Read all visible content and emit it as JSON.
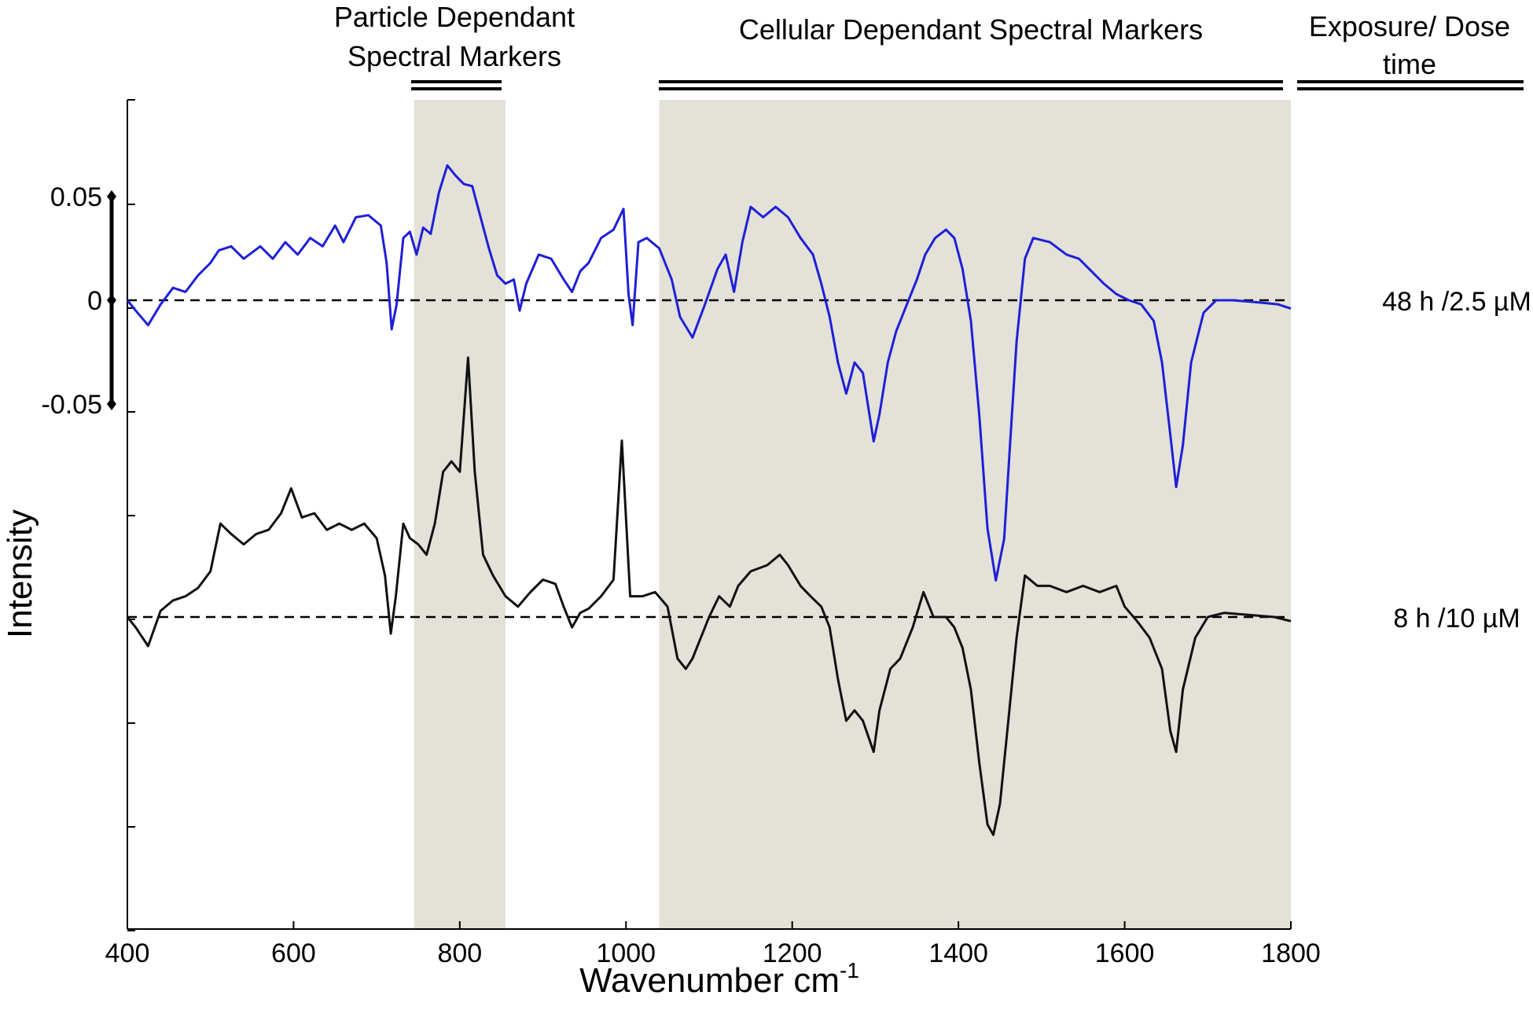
{
  "chart_data": {
    "type": "line",
    "xlabel": "Wavenumber cm-1",
    "xlabel_main": "Wavenumber cm",
    "xlabel_sup": "-1",
    "ylabel": "Intensity",
    "xlim": [
      400,
      1800
    ],
    "x_ticks": [
      "400",
      "600",
      "800",
      "1000",
      "1200",
      "1400",
      "1600",
      "1800"
    ],
    "scale_bar": {
      "labels": [
        "0.05",
        "0",
        "-0.05"
      ],
      "values": [
        0.05,
        0,
        -0.05
      ]
    },
    "regions": [
      {
        "label_lines": [
          "Particle Dependant",
          "Spectral Markers"
        ],
        "x_range": [
          745,
          855
        ]
      },
      {
        "label_lines": [
          "Cellular Dependant Spectral Markers"
        ],
        "x_range": [
          1040,
          1800
        ]
      }
    ],
    "exposure_header_lines": [
      "Exposure/ Dose",
      "time"
    ],
    "region_fill": "#e3e1d8",
    "series": [
      {
        "name": "48 h /2.5 µM",
        "color": "#1f1fd6",
        "baseline": 0,
        "points": [
          [
            400,
            0.0
          ],
          [
            410,
            -0.005
          ],
          [
            425,
            -0.012
          ],
          [
            440,
            -0.002
          ],
          [
            455,
            0.006
          ],
          [
            470,
            0.004
          ],
          [
            485,
            0.012
          ],
          [
            500,
            0.018
          ],
          [
            510,
            0.024
          ],
          [
            525,
            0.026
          ],
          [
            540,
            0.02
          ],
          [
            560,
            0.026
          ],
          [
            575,
            0.02
          ],
          [
            590,
            0.028
          ],
          [
            605,
            0.022
          ],
          [
            620,
            0.03
          ],
          [
            635,
            0.026
          ],
          [
            650,
            0.036
          ],
          [
            660,
            0.028
          ],
          [
            675,
            0.04
          ],
          [
            690,
            0.041
          ],
          [
            705,
            0.036
          ],
          [
            712,
            0.018
          ],
          [
            718,
            -0.014
          ],
          [
            724,
            -0.002
          ],
          [
            732,
            0.03
          ],
          [
            740,
            0.033
          ],
          [
            748,
            0.022
          ],
          [
            756,
            0.035
          ],
          [
            765,
            0.032
          ],
          [
            775,
            0.052
          ],
          [
            785,
            0.065
          ],
          [
            795,
            0.06
          ],
          [
            805,
            0.056
          ],
          [
            815,
            0.055
          ],
          [
            825,
            0.04
          ],
          [
            835,
            0.025
          ],
          [
            845,
            0.012
          ],
          [
            855,
            0.008
          ],
          [
            865,
            0.01
          ],
          [
            872,
            -0.005
          ],
          [
            880,
            0.008
          ],
          [
            895,
            0.022
          ],
          [
            910,
            0.02
          ],
          [
            925,
            0.01
          ],
          [
            935,
            0.004
          ],
          [
            945,
            0.014
          ],
          [
            955,
            0.018
          ],
          [
            970,
            0.03
          ],
          [
            985,
            0.034
          ],
          [
            997,
            0.044
          ],
          [
            1003,
            0.003
          ],
          [
            1008,
            -0.012
          ],
          [
            1015,
            0.028
          ],
          [
            1025,
            0.03
          ],
          [
            1040,
            0.025
          ],
          [
            1055,
            0.01
          ],
          [
            1065,
            -0.008
          ],
          [
            1080,
            -0.018
          ],
          [
            1095,
            -0.002
          ],
          [
            1110,
            0.015
          ],
          [
            1120,
            0.022
          ],
          [
            1130,
            0.004
          ],
          [
            1140,
            0.028
          ],
          [
            1150,
            0.045
          ],
          [
            1165,
            0.04
          ],
          [
            1180,
            0.045
          ],
          [
            1195,
            0.04
          ],
          [
            1210,
            0.03
          ],
          [
            1225,
            0.022
          ],
          [
            1235,
            0.008
          ],
          [
            1245,
            -0.008
          ],
          [
            1255,
            -0.03
          ],
          [
            1265,
            -0.045
          ],
          [
            1275,
            -0.03
          ],
          [
            1285,
            -0.035
          ],
          [
            1298,
            -0.068
          ],
          [
            1305,
            -0.055
          ],
          [
            1315,
            -0.03
          ],
          [
            1325,
            -0.015
          ],
          [
            1335,
            -0.005
          ],
          [
            1350,
            0.01
          ],
          [
            1360,
            0.022
          ],
          [
            1372,
            0.03
          ],
          [
            1385,
            0.034
          ],
          [
            1395,
            0.03
          ],
          [
            1405,
            0.015
          ],
          [
            1415,
            -0.01
          ],
          [
            1425,
            -0.055
          ],
          [
            1435,
            -0.11
          ],
          [
            1445,
            -0.135
          ],
          [
            1455,
            -0.115
          ],
          [
            1462,
            -0.07
          ],
          [
            1470,
            -0.02
          ],
          [
            1480,
            0.02
          ],
          [
            1490,
            0.03
          ],
          [
            1510,
            0.028
          ],
          [
            1530,
            0.022
          ],
          [
            1545,
            0.02
          ],
          [
            1560,
            0.014
          ],
          [
            1575,
            0.008
          ],
          [
            1590,
            0.003
          ],
          [
            1605,
            0.0
          ],
          [
            1620,
            -0.002
          ],
          [
            1635,
            -0.01
          ],
          [
            1645,
            -0.03
          ],
          [
            1655,
            -0.065
          ],
          [
            1662,
            -0.09
          ],
          [
            1670,
            -0.07
          ],
          [
            1680,
            -0.03
          ],
          [
            1695,
            -0.006
          ],
          [
            1710,
            0.0
          ],
          [
            1730,
            0.0
          ],
          [
            1760,
            -0.001
          ],
          [
            1785,
            -0.002
          ],
          [
            1800,
            -0.004
          ]
        ]
      },
      {
        "name": "8 h /10 µM",
        "color": "#111111",
        "baseline": 0,
        "points": [
          [
            400,
            0.0
          ],
          [
            410,
            -0.005
          ],
          [
            425,
            -0.014
          ],
          [
            440,
            0.003
          ],
          [
            455,
            0.008
          ],
          [
            470,
            0.01
          ],
          [
            485,
            0.014
          ],
          [
            500,
            0.022
          ],
          [
            512,
            0.045
          ],
          [
            525,
            0.04
          ],
          [
            540,
            0.035
          ],
          [
            555,
            0.04
          ],
          [
            570,
            0.042
          ],
          [
            585,
            0.05
          ],
          [
            597,
            0.062
          ],
          [
            610,
            0.048
          ],
          [
            625,
            0.05
          ],
          [
            640,
            0.042
          ],
          [
            655,
            0.045
          ],
          [
            670,
            0.042
          ],
          [
            685,
            0.045
          ],
          [
            700,
            0.038
          ],
          [
            710,
            0.02
          ],
          [
            717,
            -0.008
          ],
          [
            723,
            0.01
          ],
          [
            732,
            0.045
          ],
          [
            740,
            0.038
          ],
          [
            750,
            0.035
          ],
          [
            760,
            0.03
          ],
          [
            770,
            0.045
          ],
          [
            780,
            0.07
          ],
          [
            790,
            0.075
          ],
          [
            800,
            0.07
          ],
          [
            810,
            0.125
          ],
          [
            818,
            0.07
          ],
          [
            828,
            0.03
          ],
          [
            840,
            0.02
          ],
          [
            855,
            0.01
          ],
          [
            870,
            0.005
          ],
          [
            885,
            0.012
          ],
          [
            900,
            0.018
          ],
          [
            915,
            0.016
          ],
          [
            925,
            0.005
          ],
          [
            935,
            -0.005
          ],
          [
            945,
            0.002
          ],
          [
            955,
            0.004
          ],
          [
            970,
            0.01
          ],
          [
            985,
            0.018
          ],
          [
            995,
            0.085
          ],
          [
            1005,
            0.01
          ],
          [
            1020,
            0.01
          ],
          [
            1035,
            0.012
          ],
          [
            1050,
            0.005
          ],
          [
            1062,
            -0.02
          ],
          [
            1072,
            -0.025
          ],
          [
            1080,
            -0.02
          ],
          [
            1090,
            -0.01
          ],
          [
            1100,
            0.0
          ],
          [
            1112,
            0.01
          ],
          [
            1125,
            0.005
          ],
          [
            1135,
            0.015
          ],
          [
            1150,
            0.022
          ],
          [
            1170,
            0.025
          ],
          [
            1185,
            0.03
          ],
          [
            1195,
            0.025
          ],
          [
            1210,
            0.015
          ],
          [
            1222,
            0.01
          ],
          [
            1235,
            0.005
          ],
          [
            1245,
            -0.005
          ],
          [
            1255,
            -0.03
          ],
          [
            1265,
            -0.05
          ],
          [
            1275,
            -0.045
          ],
          [
            1285,
            -0.05
          ],
          [
            1298,
            -0.065
          ],
          [
            1305,
            -0.045
          ],
          [
            1318,
            -0.025
          ],
          [
            1330,
            -0.02
          ],
          [
            1345,
            -0.005
          ],
          [
            1358,
            0.012
          ],
          [
            1370,
            0.0
          ],
          [
            1385,
            0.0
          ],
          [
            1395,
            -0.005
          ],
          [
            1405,
            -0.015
          ],
          [
            1415,
            -0.035
          ],
          [
            1425,
            -0.07
          ],
          [
            1435,
            -0.1
          ],
          [
            1442,
            -0.105
          ],
          [
            1450,
            -0.09
          ],
          [
            1460,
            -0.05
          ],
          [
            1470,
            -0.01
          ],
          [
            1480,
            0.02
          ],
          [
            1495,
            0.015
          ],
          [
            1510,
            0.015
          ],
          [
            1530,
            0.012
          ],
          [
            1550,
            0.015
          ],
          [
            1570,
            0.012
          ],
          [
            1590,
            0.015
          ],
          [
            1600,
            0.005
          ],
          [
            1615,
            -0.002
          ],
          [
            1630,
            -0.01
          ],
          [
            1645,
            -0.025
          ],
          [
            1655,
            -0.055
          ],
          [
            1662,
            -0.065
          ],
          [
            1670,
            -0.035
          ],
          [
            1685,
            -0.01
          ],
          [
            1700,
            0.0
          ],
          [
            1720,
            0.002
          ],
          [
            1750,
            0.001
          ],
          [
            1780,
            0.0
          ],
          [
            1800,
            -0.002
          ]
        ]
      }
    ]
  }
}
